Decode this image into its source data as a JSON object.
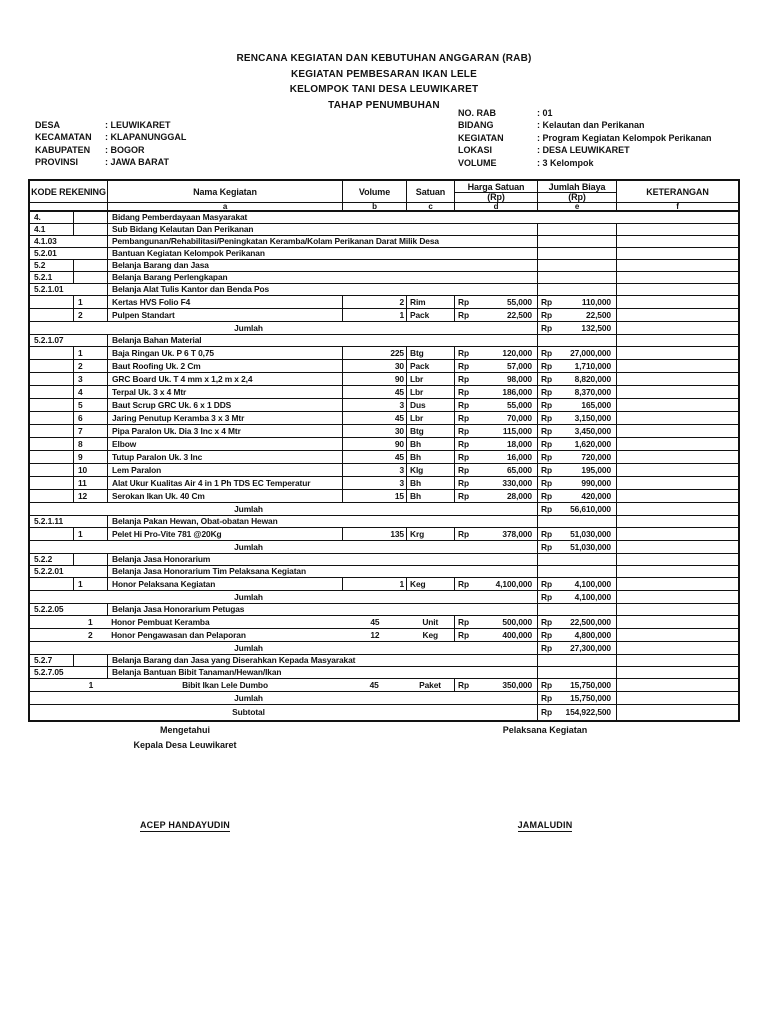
{
  "title_lines": [
    "RENCANA KEGIATAN DAN KEBUTUHAN ANGGARAN  (RAB)",
    "KEGIATAN PEMBESARAN IKAN LELE",
    "KELOMPOK TANI DESA LEUWIKARET",
    "TAHAP PENUMBUHAN"
  ],
  "meta_left": [
    {
      "label": "DESA",
      "value": ": LEUWIKARET"
    },
    {
      "label": "KECAMATAN",
      "value": ": KLAPANUNGGAL"
    },
    {
      "label": "KABUPATEN",
      "value": ": BOGOR"
    },
    {
      "label": "PROVINSI",
      "value": ": JAWA BARAT"
    }
  ],
  "meta_right": [
    {
      "label": "NO. RAB",
      "value": ": 01"
    },
    {
      "label": "BIDANG",
      "value": ": Kelautan dan Perikanan"
    },
    {
      "label": "KEGIATAN",
      "value": ": Program Kegiatan Kelompok Perikanan"
    },
    {
      "label": "LOKASI",
      "value": ": DESA LEUWIKARET"
    },
    {
      "label": "VOLUME",
      "value": ": 3 Kelompok"
    }
  ],
  "table": {
    "currency": "Rp",
    "headers": {
      "kode": "KODE REKENING",
      "nama": "Nama Kegiatan",
      "volume": "Volume",
      "satuan": "Satuan",
      "harga_top": "Harga Satuan",
      "harga_bottom": "(Rp)",
      "jumlah_top": "Jumlah Biaya",
      "jumlah_bottom": "(Rp)",
      "keterangan": "KETERANGAN"
    },
    "letters": [
      "a",
      "b",
      "c",
      "d",
      "e",
      "f"
    ],
    "rows": [
      {
        "t": "section",
        "code": "4.",
        "name": "Bidang Pemberdayaan Masyarakat",
        "full": true
      },
      {
        "t": "section",
        "code": "4.1",
        "name": "Sub Bidang Kelautan Dan Perikanan"
      },
      {
        "t": "section",
        "code": "4.1.03",
        "name": "Pembangunan/Rehabilitasi/Peningkatan Keramba/Kolam Perikanan Darat Milik Desa",
        "wide": true
      },
      {
        "t": "section",
        "code": "5.2.01",
        "name": "Bantuan Kegiatan Kelompok Perikanan",
        "wide": true
      },
      {
        "t": "section",
        "code": "5.2",
        "name": "Belanja Barang dan Jasa"
      },
      {
        "t": "section",
        "code": "5.2.1",
        "name": "Belanja Barang Perlengkapan"
      },
      {
        "t": "section",
        "code": "5.2.1.01",
        "name": "Belanja Alat Tulis Kantor dan Benda Pos",
        "wide": true
      },
      {
        "t": "item",
        "num": "1",
        "name": "Kertas HVS Folio F4",
        "vol": "2",
        "sat": "Rim",
        "harga": "55,000",
        "jumlah": "110,000"
      },
      {
        "t": "item",
        "num": "2",
        "name": "Pulpen Standart",
        "vol": "1",
        "sat": "Pack",
        "harga": "22,500",
        "jumlah": "22,500"
      },
      {
        "t": "jumlah",
        "label": "Jumlah",
        "jumlah": "132,500"
      },
      {
        "t": "section",
        "code": "5.2.1.07",
        "name": "Belanja Bahan Material",
        "wide": true
      },
      {
        "t": "item",
        "num": "1",
        "name": "Baja Ringan Uk. P 6 T 0,75",
        "vol": "225",
        "sat": "Btg",
        "harga": "120,000",
        "jumlah": "27,000,000"
      },
      {
        "t": "item",
        "num": "2",
        "name": "Baut Roofing Uk. 2 Cm",
        "vol": "30",
        "sat": "Pack",
        "harga": "57,000",
        "jumlah": "1,710,000"
      },
      {
        "t": "item",
        "num": "3",
        "name": "GRC Board Uk. T 4 mm x 1,2 m x 2,4",
        "vol": "90",
        "sat": "Lbr",
        "harga": "98,000",
        "jumlah": "8,820,000"
      },
      {
        "t": "item",
        "num": "4",
        "name": "Terpal Uk. 3 x 4 Mtr",
        "vol": "45",
        "sat": "Lbr",
        "harga": "186,000",
        "jumlah": "8,370,000"
      },
      {
        "t": "item",
        "num": "5",
        "name": "Baut Scrup GRC Uk. 6 x 1 DDS",
        "vol": "3",
        "sat": "Dus",
        "harga": "55,000",
        "jumlah": "165,000"
      },
      {
        "t": "item",
        "num": "6",
        "name": "Jaring Penutup Keramba 3 x 3 Mtr",
        "vol": "45",
        "sat": "Lbr",
        "harga": "70,000",
        "jumlah": "3,150,000"
      },
      {
        "t": "item",
        "num": "7",
        "name": "Pipa Paralon Uk. Dia 3 Inc x 4 Mtr",
        "vol": "30",
        "sat": "Btg",
        "harga": "115,000",
        "jumlah": "3,450,000"
      },
      {
        "t": "item",
        "num": "8",
        "name": "Elbow",
        "vol": "90",
        "sat": "Bh",
        "harga": "18,000",
        "jumlah": "1,620,000"
      },
      {
        "t": "item",
        "num": "9",
        "name": "Tutup Paralon Uk. 3 Inc",
        "vol": "45",
        "sat": "Bh",
        "harga": "16,000",
        "jumlah": "720,000"
      },
      {
        "t": "item",
        "num": "10",
        "name": "Lem Paralon",
        "vol": "3",
        "sat": "Klg",
        "harga": "65,000",
        "jumlah": "195,000"
      },
      {
        "t": "item",
        "num": "11",
        "name": "Alat Ukur Kualitas Air 4 in 1 Ph TDS EC Temperatur",
        "vol": "3",
        "sat": "Bh",
        "harga": "330,000",
        "jumlah": "990,000"
      },
      {
        "t": "item",
        "num": "12",
        "name": "Serokan Ikan Uk. 40 Cm",
        "vol": "15",
        "sat": "Bh",
        "harga": "28,000",
        "jumlah": "420,000"
      },
      {
        "t": "jumlah",
        "label": "Jumlah",
        "jumlah": "56,610,000"
      },
      {
        "t": "section",
        "code": "5.2.1.11",
        "name": "Belanja Pakan Hewan, Obat-obatan Hewan",
        "wide": true
      },
      {
        "t": "item",
        "num": "1",
        "name": "Pelet Hi Pro-Vite 781 @20Kg",
        "vol": "135",
        "sat": "Krg",
        "harga": "378,000",
        "jumlah": "51,030,000"
      },
      {
        "t": "jumlah",
        "label": "Jumlah",
        "jumlah": "51,030,000"
      },
      {
        "t": "section",
        "code": "5.2.2",
        "name": "Belanja Jasa Honorarium"
      },
      {
        "t": "section",
        "code": "5.2.2.01",
        "name": "Belanja Jasa Honorarium Tim Pelaksana Kegiatan",
        "wide": true
      },
      {
        "t": "item",
        "num": "1",
        "name": "Honor Pelaksana Kegiatan",
        "vol": "1",
        "sat": "Keg",
        "harga": "4,100,000",
        "jumlah": "4,100,000"
      },
      {
        "t": "jumlah",
        "label": "Jumlah",
        "jumlah": "4,100,000"
      },
      {
        "t": "section",
        "code": "5.2.2.05",
        "name": "Belanja Jasa Honorarium Petugas",
        "wide": true
      },
      {
        "t": "itemc",
        "num": "1",
        "name": "Honor Pembuat Keramba",
        "vol": "45",
        "sat": "Unit",
        "harga": "500,000",
        "jumlah": "22,500,000"
      },
      {
        "t": "itemc",
        "num": "2",
        "name": "Honor Pengawasan dan Pelaporan",
        "vol": "12",
        "sat": "Keg",
        "harga": "400,000",
        "jumlah": "4,800,000"
      },
      {
        "t": "jumlah",
        "label": "Jumlah",
        "jumlah": "27,300,000"
      },
      {
        "t": "section",
        "code": "5.2.7",
        "name": "Belanja Barang dan Jasa yang Diserahkan Kepada Masyarakat"
      },
      {
        "t": "section",
        "code": "5.2.7.05",
        "name": "Belanja Bantuan Bibit Tanaman/Hewan/Ikan",
        "wide": true
      },
      {
        "t": "itemc",
        "num": "1",
        "name": "Bibit Ikan Lele Dumbo",
        "vol": "45",
        "sat": "Paket",
        "harga": "350,000",
        "jumlah": "15,750,000",
        "center": true
      },
      {
        "t": "jumlah",
        "label": "Jumlah",
        "jumlah": "15,750,000"
      },
      {
        "t": "subtotal",
        "label": "Subtotal",
        "jumlah": "154,922,500"
      }
    ]
  },
  "footer": {
    "left_line1": "Mengetahui",
    "left_line2": "Kepala Desa Leuwikaret",
    "left_name": "ACEP HANDAYUDIN",
    "right_line1": "Pelaksana Kegiatan",
    "right_name": "JAMALUDIN"
  }
}
